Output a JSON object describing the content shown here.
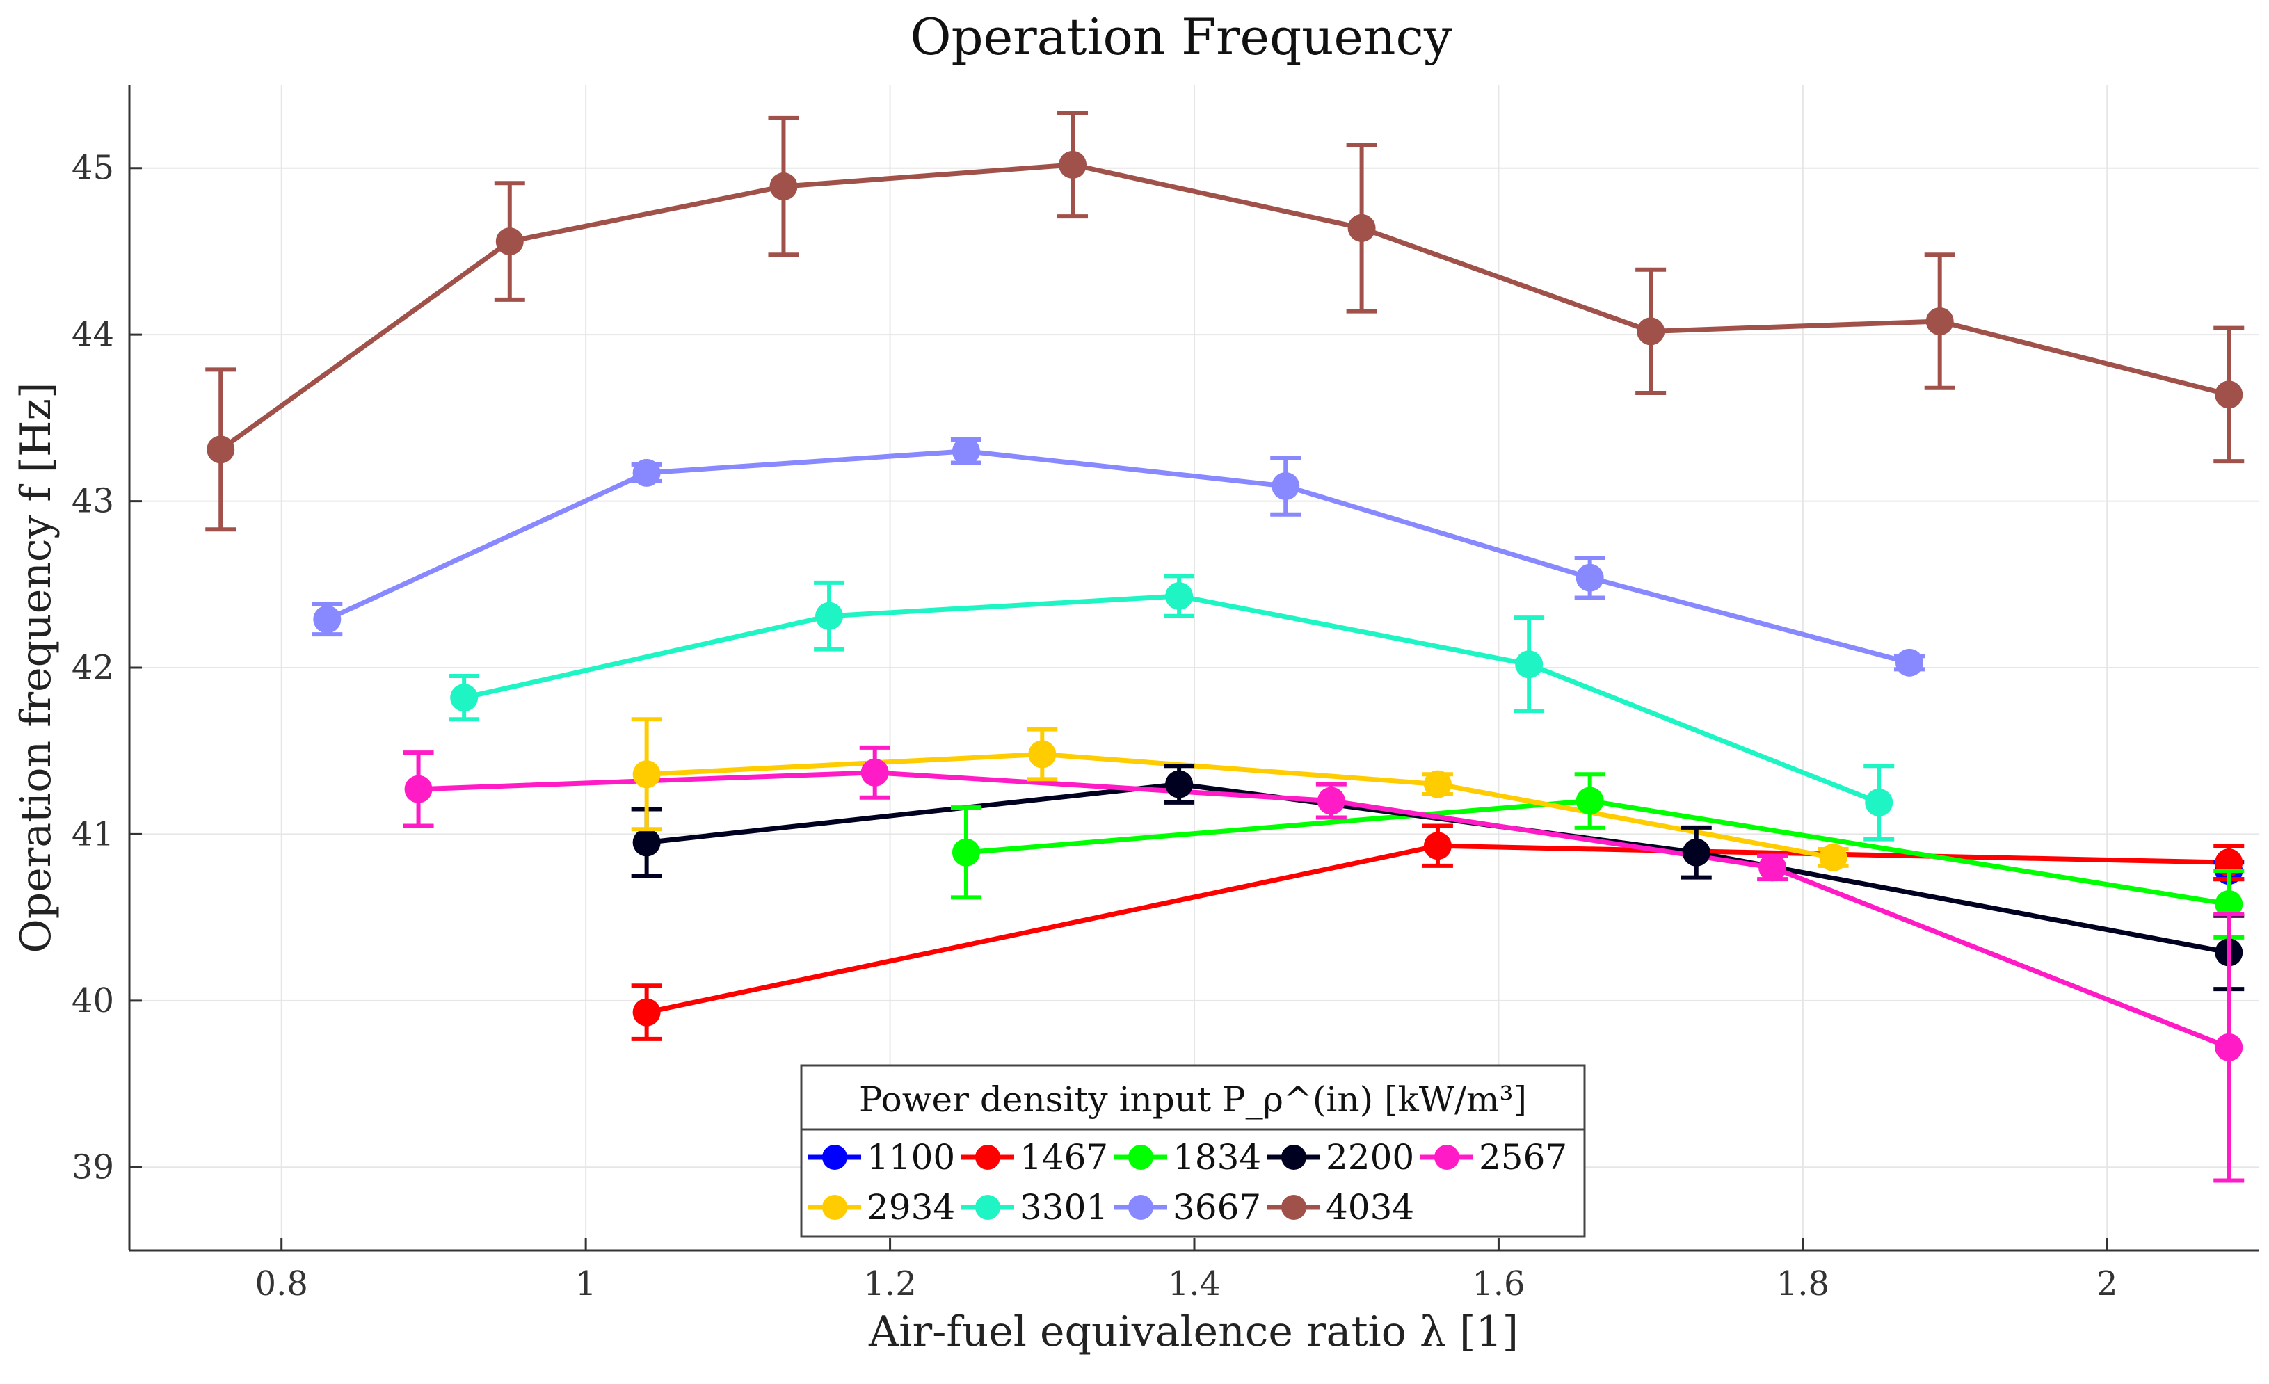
{
  "chart_data": {
    "type": "line",
    "title": "Operation Frequency",
    "xlabel": "Air-fuel equivalence ratio λ [1]",
    "ylabel": "Operation frequency f [Hz]",
    "xlim": [
      0.7,
      2.1
    ],
    "ylim": [
      38.5,
      45.5
    ],
    "xticks": [
      0.8,
      1.0,
      1.2,
      1.4,
      1.6,
      1.8,
      2.0
    ],
    "xtick_labels": [
      "0.8",
      "1",
      "1.2",
      "1.4",
      "1.6",
      "1.8",
      "2"
    ],
    "yticks": [
      39,
      40,
      41,
      42,
      43,
      44,
      45
    ],
    "ytick_labels": [
      "39",
      "40",
      "41",
      "42",
      "43",
      "44",
      "45"
    ],
    "grid": true,
    "legend": {
      "title": "Power density input P_ρ^(in) [kW/m³]",
      "position": "bottom-center"
    },
    "series": [
      {
        "name": "1100",
        "color": "#0000ff",
        "points": [
          [
            2.08,
            40.78,
            0.05
          ]
        ]
      },
      {
        "name": "1467",
        "color": "#ff0000",
        "points": [
          [
            1.04,
            39.93,
            0.16
          ],
          [
            1.56,
            40.93,
            0.12
          ],
          [
            2.08,
            40.83,
            0.1
          ]
        ]
      },
      {
        "name": "1834",
        "color": "#00ff00",
        "points": [
          [
            1.25,
            40.89,
            0.27
          ],
          [
            1.66,
            41.2,
            0.16
          ],
          [
            2.08,
            40.58,
            0.2
          ]
        ]
      },
      {
        "name": "2200",
        "color": "#000020",
        "points": [
          [
            1.04,
            40.95,
            0.2
          ],
          [
            1.39,
            41.3,
            0.11
          ],
          [
            1.73,
            40.89,
            0.15
          ],
          [
            2.08,
            40.29,
            0.22
          ]
        ]
      },
      {
        "name": "2567",
        "color": "#ff1cc6",
        "points": [
          [
            0.89,
            41.27,
            0.22
          ],
          [
            1.19,
            41.37,
            0.15
          ],
          [
            1.49,
            41.2,
            0.1
          ],
          [
            1.78,
            40.8,
            0.07
          ],
          [
            2.08,
            39.72,
            0.8
          ]
        ]
      },
      {
        "name": "2934",
        "color": "#ffcc00",
        "points": [
          [
            1.04,
            41.36,
            0.33
          ],
          [
            1.3,
            41.48,
            0.15
          ],
          [
            1.56,
            41.3,
            0.06
          ],
          [
            1.82,
            40.86,
            0.05
          ]
        ]
      },
      {
        "name": "3301",
        "color": "#1ff5c4",
        "points": [
          [
            0.92,
            41.82,
            0.13
          ],
          [
            1.16,
            42.31,
            0.2
          ],
          [
            1.39,
            42.43,
            0.12
          ],
          [
            1.62,
            42.02,
            0.28
          ],
          [
            1.85,
            41.19,
            0.22
          ]
        ]
      },
      {
        "name": "3667",
        "color": "#8888ff",
        "points": [
          [
            0.83,
            42.29,
            0.09
          ],
          [
            1.04,
            43.17,
            0.05
          ],
          [
            1.25,
            43.3,
            0.07
          ],
          [
            1.46,
            43.09,
            0.17
          ],
          [
            1.66,
            42.54,
            0.12
          ],
          [
            1.87,
            42.03,
            0.04
          ]
        ]
      },
      {
        "name": "4034",
        "color": "#a0524a",
        "points": [
          [
            0.76,
            43.31,
            0.48
          ],
          [
            0.95,
            44.56,
            0.35
          ],
          [
            1.13,
            44.89,
            0.41
          ],
          [
            1.32,
            45.02,
            0.31
          ],
          [
            1.51,
            44.64,
            0.5
          ],
          [
            1.7,
            44.02,
            0.37
          ],
          [
            1.89,
            44.08,
            0.4
          ],
          [
            2.08,
            43.64,
            0.4
          ]
        ]
      }
    ]
  }
}
